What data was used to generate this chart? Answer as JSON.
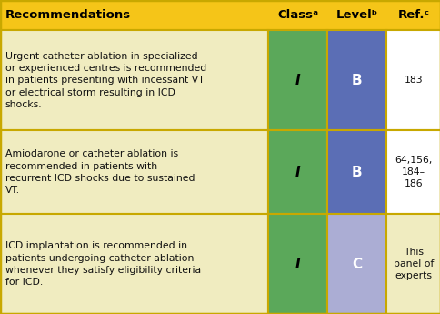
{
  "col_headers": [
    "Recommendations",
    "Classᵃ",
    "Levelᵇ",
    "Ref.ᶜ"
  ],
  "header_bg": "#F5C518",
  "header_text_color": "#000000",
  "row_bg": "#F0ECC0",
  "class_col_color": "#5BA85A",
  "level_col_colors": [
    "#5B6EB5",
    "#5B6EB5",
    "#ABADD4"
  ],
  "ref_col_bgs": [
    "#FFFFFF",
    "#FFFFFF",
    "#F0ECC0"
  ],
  "border_color": "#C8A800",
  "rows": [
    {
      "recommendation": "Urgent catheter ablation in specialized\nor experienced centres is recommended\nin patients presenting with incessant VT\nor electrical storm resulting in ICD\nshocks.",
      "class": "I",
      "level": "B",
      "ref": "183",
      "level_color": "#5B6EB5"
    },
    {
      "recommendation": "Amiodarone or catheter ablation is\nrecommended in patients with\nrecurrent ICD shocks due to sustained\nVT.",
      "class": "I",
      "level": "B",
      "ref": "64,156,\n184–\n186",
      "level_color": "#5B6EB5"
    },
    {
      "recommendation": "ICD implantation is recommended in\npatients undergoing catheter ablation\nwhenever they satisfy eligibility criteria\nfor ICD.",
      "class": "I",
      "level": "C",
      "ref": "This\npanel of\nexperts",
      "level_color": "#ABADD4"
    }
  ],
  "figsize": [
    4.85,
    3.45
  ],
  "dpi": 100
}
